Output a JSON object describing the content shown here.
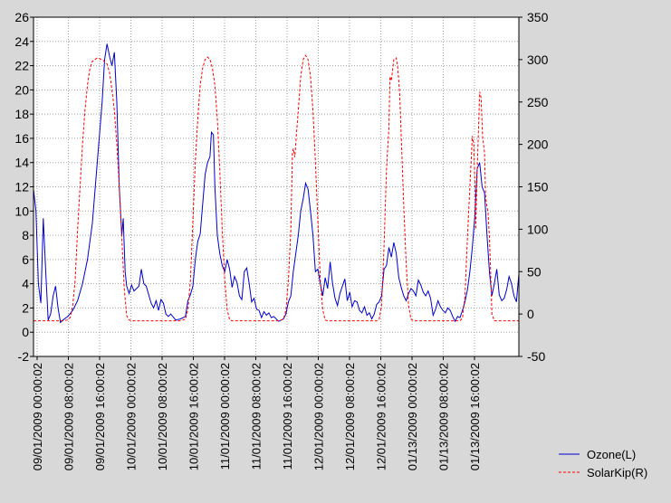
{
  "chart_data": {
    "type": "line",
    "title": "",
    "xlabel": "",
    "ylabel_left": "",
    "ylabel_right": "",
    "x_ticks": [
      "09/01/2009 00:00:02",
      "09/01/2009 08:00:02",
      "09/01/2009 16:00:02",
      "10/01/2009 00:00:02",
      "10/01/2009 08:00:02",
      "10/01/2009 16:00:02",
      "11/01/2009 00:00:02",
      "11/01/2009 08:00:02",
      "11/01/2009 16:00:02",
      "12/01/2009 00:00:02",
      "12/01/2009 08:00:02",
      "12/01/2009 16:00:02",
      "01/13/2009 00:00:02",
      "01/13/2009 08:00:02",
      "01/13/2009 16:00:02"
    ],
    "ylim_left": [
      -2,
      26
    ],
    "yticks_left": [
      -2,
      0,
      2,
      4,
      6,
      8,
      10,
      12,
      14,
      16,
      18,
      20,
      22,
      24,
      26
    ],
    "ylim_right": [
      -50,
      350
    ],
    "yticks_right": [
      -50,
      0,
      50,
      100,
      150,
      200,
      250,
      300,
      350
    ],
    "grid": true,
    "legend_position": "bottom-right",
    "series": [
      {
        "name": "Ozone(L)",
        "axis": "left",
        "color": "#0000cc",
        "style": "solid",
        "points": [
          [
            0,
            11.8
          ],
          [
            0.5,
            10
          ],
          [
            1,
            4
          ],
          [
            1.5,
            2.4
          ],
          [
            2,
            9.4
          ],
          [
            2.5,
            5
          ],
          [
            3,
            1
          ],
          [
            3.5,
            1.5
          ],
          [
            4,
            3
          ],
          [
            4.5,
            3.8
          ],
          [
            5,
            2
          ],
          [
            5.5,
            0.8
          ],
          [
            6,
            1
          ],
          [
            7,
            1.3
          ],
          [
            8,
            1.8
          ],
          [
            9,
            2.6
          ],
          [
            10,
            4
          ],
          [
            11,
            6
          ],
          [
            12,
            9
          ],
          [
            13,
            14
          ],
          [
            14,
            19
          ],
          [
            14.5,
            22.5
          ],
          [
            15,
            23.8
          ],
          [
            15.5,
            22.8
          ],
          [
            16,
            22
          ],
          [
            16.5,
            23.1
          ],
          [
            17,
            19
          ],
          [
            17.5,
            12
          ],
          [
            18,
            8
          ],
          [
            18.3,
            9.4
          ],
          [
            18.7,
            5
          ],
          [
            19,
            3.8
          ],
          [
            19.5,
            3.2
          ],
          [
            20,
            3.9
          ],
          [
            20.5,
            3.4
          ],
          [
            21,
            3.6
          ],
          [
            21.5,
            3.8
          ],
          [
            22,
            5.2
          ],
          [
            22.5,
            4
          ],
          [
            23,
            3.8
          ],
          [
            24,
            2.4
          ],
          [
            24.5,
            2
          ],
          [
            25,
            2.6
          ],
          [
            25.5,
            1.8
          ],
          [
            26,
            2.7
          ],
          [
            26.5,
            2.4
          ],
          [
            27,
            1.5
          ],
          [
            27.5,
            1.3
          ],
          [
            28,
            1.5
          ],
          [
            29,
            1
          ],
          [
            30,
            1.1
          ],
          [
            31,
            1.3
          ],
          [
            31.5,
            2.6
          ],
          [
            32,
            3.1
          ],
          [
            32.5,
            3.8
          ],
          [
            33,
            6
          ],
          [
            33.5,
            7.5
          ],
          [
            34,
            8.1
          ],
          [
            35,
            13
          ],
          [
            35.5,
            14
          ],
          [
            36,
            14.5
          ],
          [
            36.3,
            16.5
          ],
          [
            36.7,
            16.3
          ],
          [
            37,
            12
          ],
          [
            37.5,
            8
          ],
          [
            38,
            6.5
          ],
          [
            38.5,
            5.5
          ],
          [
            39,
            5
          ],
          [
            39.5,
            6
          ],
          [
            40,
            5.2
          ],
          [
            40.5,
            3.7
          ],
          [
            41,
            4.6
          ],
          [
            41.5,
            4.1
          ],
          [
            42,
            3
          ],
          [
            42.5,
            2.7
          ],
          [
            43,
            5
          ],
          [
            43.5,
            5.3
          ],
          [
            44,
            4
          ],
          [
            44.5,
            2.5
          ],
          [
            45,
            2.8
          ],
          [
            45.5,
            1.9
          ],
          [
            46,
            1.8
          ],
          [
            46.5,
            1.2
          ],
          [
            47,
            1.7
          ],
          [
            47.5,
            1.4
          ],
          [
            48,
            1.6
          ],
          [
            48.5,
            1.2
          ],
          [
            49,
            1.3
          ],
          [
            50,
            0.9
          ],
          [
            51,
            1.1
          ],
          [
            51.5,
            1.5
          ],
          [
            52,
            2.5
          ],
          [
            52.5,
            3
          ],
          [
            53,
            5
          ],
          [
            54,
            8
          ],
          [
            54.5,
            10
          ],
          [
            55,
            11
          ],
          [
            55.5,
            12.3
          ],
          [
            56,
            11.8
          ],
          [
            56.5,
            10
          ],
          [
            57,
            8
          ],
          [
            57.5,
            5
          ],
          [
            58,
            5.2
          ],
          [
            58.5,
            4
          ],
          [
            59,
            3
          ],
          [
            59.5,
            4.5
          ],
          [
            60,
            3.6
          ],
          [
            60.5,
            5.8
          ],
          [
            61,
            4
          ],
          [
            61.5,
            2.8
          ],
          [
            62,
            2.2
          ],
          [
            62.5,
            3.2
          ],
          [
            63,
            3.8
          ],
          [
            63.5,
            4.4
          ],
          [
            64,
            2.6
          ],
          [
            64.5,
            3.3
          ],
          [
            65,
            2.1
          ],
          [
            65.5,
            2.6
          ],
          [
            66,
            2.5
          ],
          [
            66.5,
            1.8
          ],
          [
            67,
            1.6
          ],
          [
            67.5,
            2.1
          ],
          [
            68,
            1.4
          ],
          [
            68.5,
            1.6
          ],
          [
            69,
            1.1
          ],
          [
            69.5,
            1.5
          ],
          [
            70,
            2.3
          ],
          [
            70.5,
            2.5
          ],
          [
            71,
            3
          ],
          [
            71.5,
            5.2
          ],
          [
            72,
            5.5
          ],
          [
            72.5,
            7
          ],
          [
            73,
            6.2
          ],
          [
            73.5,
            7.4
          ],
          [
            74,
            6.5
          ],
          [
            74.5,
            4.5
          ],
          [
            75,
            3.7
          ],
          [
            75.5,
            3
          ],
          [
            76,
            2.6
          ],
          [
            76.5,
            3.2
          ],
          [
            77,
            3.6
          ],
          [
            77.5,
            3.4
          ],
          [
            78,
            3
          ],
          [
            78.5,
            4.3
          ],
          [
            79,
            3.9
          ],
          [
            79.5,
            3.3
          ],
          [
            80,
            3
          ],
          [
            80.5,
            3.4
          ],
          [
            81,
            2.8
          ],
          [
            81.5,
            1.4
          ],
          [
            82,
            1.9
          ],
          [
            82.5,
            2.6
          ],
          [
            83,
            2.1
          ],
          [
            83.5,
            1.8
          ],
          [
            84,
            1.6
          ],
          [
            84.5,
            2
          ],
          [
            85,
            1.8
          ],
          [
            85.5,
            1.3
          ],
          [
            86,
            0.9
          ],
          [
            86.5,
            1.3
          ],
          [
            87,
            1.2
          ],
          [
            87.5,
            1.8
          ],
          [
            88,
            2.5
          ],
          [
            88.5,
            3.5
          ],
          [
            89,
            5
          ],
          [
            89.5,
            7
          ],
          [
            90,
            9.5
          ],
          [
            90.5,
            13.5
          ],
          [
            91,
            14
          ],
          [
            91.5,
            12
          ],
          [
            92,
            11.5
          ],
          [
            92.5,
            8
          ],
          [
            93,
            5
          ],
          [
            93.5,
            3
          ],
          [
            94,
            4
          ],
          [
            94.5,
            5.2
          ],
          [
            95,
            3.1
          ],
          [
            95.5,
            2.6
          ],
          [
            96,
            2.8
          ],
          [
            96.5,
            3.5
          ],
          [
            97,
            4.6
          ],
          [
            97.5,
            4
          ],
          [
            98,
            3
          ],
          [
            98.5,
            2.5
          ],
          [
            99,
            4.8
          ]
        ]
      },
      {
        "name": "SolarKip(R)",
        "axis": "right",
        "color": "#ff0000",
        "style": "dashed",
        "points": [
          [
            0,
            -8
          ],
          [
            6,
            -8
          ],
          [
            7,
            -7
          ],
          [
            7.5,
            -4
          ],
          [
            8,
            10
          ],
          [
            8.5,
            40
          ],
          [
            9,
            100
          ],
          [
            9.5,
            150
          ],
          [
            10,
            200
          ],
          [
            10.5,
            240
          ],
          [
            11,
            270
          ],
          [
            11.5,
            290
          ],
          [
            12,
            298
          ],
          [
            13,
            302
          ],
          [
            14,
            300
          ],
          [
            15,
            295
          ],
          [
            15.5,
            285
          ],
          [
            16,
            265
          ],
          [
            16.5,
            240
          ],
          [
            17,
            200
          ],
          [
            17.5,
            150
          ],
          [
            18,
            90
          ],
          [
            18.5,
            30
          ],
          [
            19,
            -2
          ],
          [
            19.5,
            -7
          ],
          [
            20,
            -8
          ],
          [
            30,
            -8
          ],
          [
            31,
            -6
          ],
          [
            31.5,
            5
          ],
          [
            32,
            40
          ],
          [
            32.5,
            110
          ],
          [
            33,
            180
          ],
          [
            33.5,
            230
          ],
          [
            34,
            270
          ],
          [
            34.5,
            290
          ],
          [
            35,
            300
          ],
          [
            35.5,
            303
          ],
          [
            36,
            300
          ],
          [
            36.5,
            290
          ],
          [
            37,
            270
          ],
          [
            37.5,
            230
          ],
          [
            38,
            170
          ],
          [
            38.5,
            100
          ],
          [
            39,
            40
          ],
          [
            39.5,
            5
          ],
          [
            40,
            -7
          ],
          [
            40.5,
            -8
          ],
          [
            50,
            -8
          ],
          [
            51,
            -6
          ],
          [
            51.5,
            5
          ],
          [
            52,
            40
          ],
          [
            52.5,
            100
          ],
          [
            52.8,
            190
          ],
          [
            53,
            195
          ],
          [
            53.3,
            185
          ],
          [
            53.6,
            210
          ],
          [
            54,
            240
          ],
          [
            54.5,
            280
          ],
          [
            55,
            300
          ],
          [
            55.5,
            305
          ],
          [
            56,
            300
          ],
          [
            56.5,
            280
          ],
          [
            57,
            240
          ],
          [
            57.5,
            180
          ],
          [
            58,
            110
          ],
          [
            58.5,
            40
          ],
          [
            59,
            5
          ],
          [
            59.5,
            -7
          ],
          [
            60,
            -8
          ],
          [
            70,
            -8
          ],
          [
            70.5,
            -6
          ],
          [
            71,
            10
          ],
          [
            71.5,
            80
          ],
          [
            72,
            170
          ],
          [
            72.5,
            220
          ],
          [
            72.7,
            280
          ],
          [
            73,
            275
          ],
          [
            73.2,
            285
          ],
          [
            73.5,
            300
          ],
          [
            74,
            302
          ],
          [
            74.3,
            290
          ],
          [
            74.7,
            260
          ],
          [
            75,
            210
          ],
          [
            75.5,
            130
          ],
          [
            76,
            60
          ],
          [
            76.5,
            10
          ],
          [
            77,
            -6
          ],
          [
            77.5,
            -8
          ],
          [
            87,
            -8
          ],
          [
            87.5,
            -5
          ],
          [
            88,
            20
          ],
          [
            88.5,
            90
          ],
          [
            89,
            150
          ],
          [
            89.5,
            210
          ],
          [
            89.8,
            200
          ],
          [
            90,
            160
          ],
          [
            90.2,
            100
          ],
          [
            90.5,
            170
          ],
          [
            91,
            262
          ],
          [
            91.3,
            255
          ],
          [
            91.6,
            210
          ],
          [
            92,
            190
          ],
          [
            92.2,
            140
          ],
          [
            92.4,
            130
          ],
          [
            92.7,
            120
          ],
          [
            93,
            90
          ],
          [
            93.3,
            40
          ],
          [
            93.5,
            0
          ],
          [
            94,
            -8
          ],
          [
            99,
            -8
          ]
        ]
      }
    ]
  }
}
